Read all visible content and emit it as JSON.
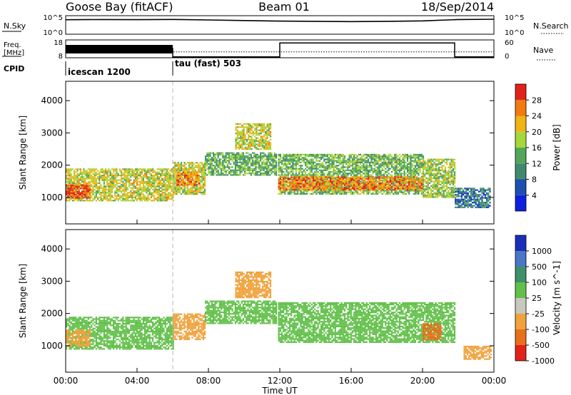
{
  "header": {
    "station": "Goose Bay (fitACF)",
    "beam": "Beam 01",
    "date": "18/Sep/2014"
  },
  "top_panels": {
    "nsky": {
      "label": "N.Sky",
      "tick_top": "10^5",
      "tick_bottom": "10^0"
    },
    "nsearch": {
      "label": "N.Search",
      "tick_top": "10^5",
      "tick_bottom": "10^0"
    },
    "freq": {
      "label_line1": "Freq.",
      "label_line2": "[MHz]",
      "tick_top": "18",
      "tick_bottom": "8"
    },
    "nave": {
      "label": "Nave",
      "tick_top": "60",
      "tick_bottom": "0"
    },
    "cpid": {
      "label": "CPID",
      "modes": [
        {
          "name": "icescan 1200",
          "start_hour": 0,
          "end_hour": 6
        },
        {
          "name": "tau (fast) 503",
          "start_hour": 6,
          "end_hour": 24
        }
      ]
    }
  },
  "power_panel": {
    "colorbar": {
      "label": "Power [dB]",
      "ticks": [
        "4",
        "8",
        "12",
        "16",
        "20",
        "24",
        "28"
      ]
    }
  },
  "velocity_panel": {
    "colorbar": {
      "label": "Velocity [m s^-1]",
      "ticks": [
        "1000",
        "500",
        "100",
        "25",
        "-25",
        "-100",
        "-500",
        "-1000"
      ]
    }
  },
  "chart_data": [
    {
      "type": "line",
      "title": "Goose Bay (fitACF)",
      "panel": "N.Sky / N.Search",
      "x": [
        0,
        2,
        4,
        6,
        8,
        10,
        12,
        14,
        16,
        18,
        20,
        22,
        24
      ],
      "series": [
        {
          "name": "N.Sky",
          "values": [
            8000,
            9000,
            8500,
            9500,
            7000,
            5000,
            3500,
            3000,
            2500,
            3000,
            4000,
            9000,
            11000
          ]
        }
      ],
      "ylim": [
        1,
        100000
      ]
    },
    {
      "type": "line",
      "panel": "Freq. / Nave",
      "x": [
        0,
        6,
        6,
        12,
        12,
        21.8,
        21.8,
        24
      ],
      "series": [
        {
          "name": "Freq.",
          "values": [
            13,
            13,
            8.5,
            8.5,
            16.3,
            16.3,
            8.5,
            8.5
          ]
        },
        {
          "name": "Nave",
          "values": [
            35,
            35,
            20,
            20,
            20,
            20,
            20,
            20
          ]
        }
      ],
      "ylim": [
        8,
        18
      ]
    },
    {
      "type": "heatmap",
      "panel": "Power",
      "xlabel": "",
      "ylabel": "Slant Range [km]",
      "x_ticks": [
        "00:00",
        "04:00",
        "08:00",
        "12:00",
        "16:00",
        "20:00",
        "00:00"
      ],
      "y_ticks": [
        "1000",
        "2000",
        "3000",
        "4000"
      ],
      "xlim": [
        0,
        24
      ],
      "ylim": [
        180,
        4600
      ],
      "units": "dB",
      "clim": [
        0,
        30
      ],
      "regions": [
        {
          "t_start": 0.0,
          "t_end": 6.0,
          "r_start": 900,
          "r_end": 1900,
          "value": 18
        },
        {
          "t_start": 0.0,
          "t_end": 1.4,
          "r_start": 1000,
          "r_end": 1400,
          "value": 27
        },
        {
          "t_start": 6.0,
          "t_end": 7.8,
          "r_start": 1100,
          "r_end": 2100,
          "value": 18
        },
        {
          "t_start": 6.2,
          "t_end": 7.5,
          "r_start": 1400,
          "r_end": 1800,
          "value": 24
        },
        {
          "t_start": 7.8,
          "t_end": 11.8,
          "r_start": 1700,
          "r_end": 2400,
          "value": 13
        },
        {
          "t_start": 9.5,
          "t_end": 11.5,
          "r_start": 2500,
          "r_end": 3300,
          "value": 18
        },
        {
          "t_start": 11.9,
          "t_end": 20.0,
          "r_start": 1100,
          "r_end": 2350,
          "value": 14
        },
        {
          "t_start": 11.9,
          "t_end": 20.0,
          "r_start": 1250,
          "r_end": 1650,
          "value": 24
        },
        {
          "t_start": 20.0,
          "t_end": 21.8,
          "r_start": 1000,
          "r_end": 2200,
          "value": 16
        },
        {
          "t_start": 21.8,
          "t_end": 23.8,
          "r_start": 700,
          "r_end": 1300,
          "value": 8
        }
      ]
    },
    {
      "type": "heatmap",
      "panel": "Velocity",
      "xlabel": "Time UT",
      "ylabel": "Slant Range [km]",
      "x_ticks": [
        "00:00",
        "04:00",
        "08:00",
        "12:00",
        "16:00",
        "20:00",
        "00:00"
      ],
      "y_ticks": [
        "1000",
        "2000",
        "3000",
        "4000"
      ],
      "xlim": [
        0,
        24
      ],
      "ylim": [
        180,
        4600
      ],
      "units": "m s^-1",
      "regions": [
        {
          "t_start": 0.0,
          "t_end": 6.0,
          "r_start": 900,
          "r_end": 1900,
          "value": 0
        },
        {
          "t_start": 0.0,
          "t_end": 1.4,
          "r_start": 1000,
          "r_end": 1500,
          "value": -300
        },
        {
          "t_start": 6.0,
          "t_end": 7.8,
          "r_start": 1200,
          "r_end": 2000,
          "value": -150
        },
        {
          "t_start": 7.8,
          "t_end": 11.8,
          "r_start": 1700,
          "r_end": 2400,
          "value": 0
        },
        {
          "t_start": 9.5,
          "t_end": 11.5,
          "r_start": 2500,
          "r_end": 3300,
          "value": -200
        },
        {
          "t_start": 11.9,
          "t_end": 21.8,
          "r_start": 1100,
          "r_end": 2350,
          "value": 0
        },
        {
          "t_start": 20.0,
          "t_end": 21.0,
          "r_start": 1200,
          "r_end": 1700,
          "value": -600
        },
        {
          "t_start": 22.3,
          "t_end": 23.8,
          "r_start": 600,
          "r_end": 1000,
          "value": -400
        }
      ]
    }
  ]
}
